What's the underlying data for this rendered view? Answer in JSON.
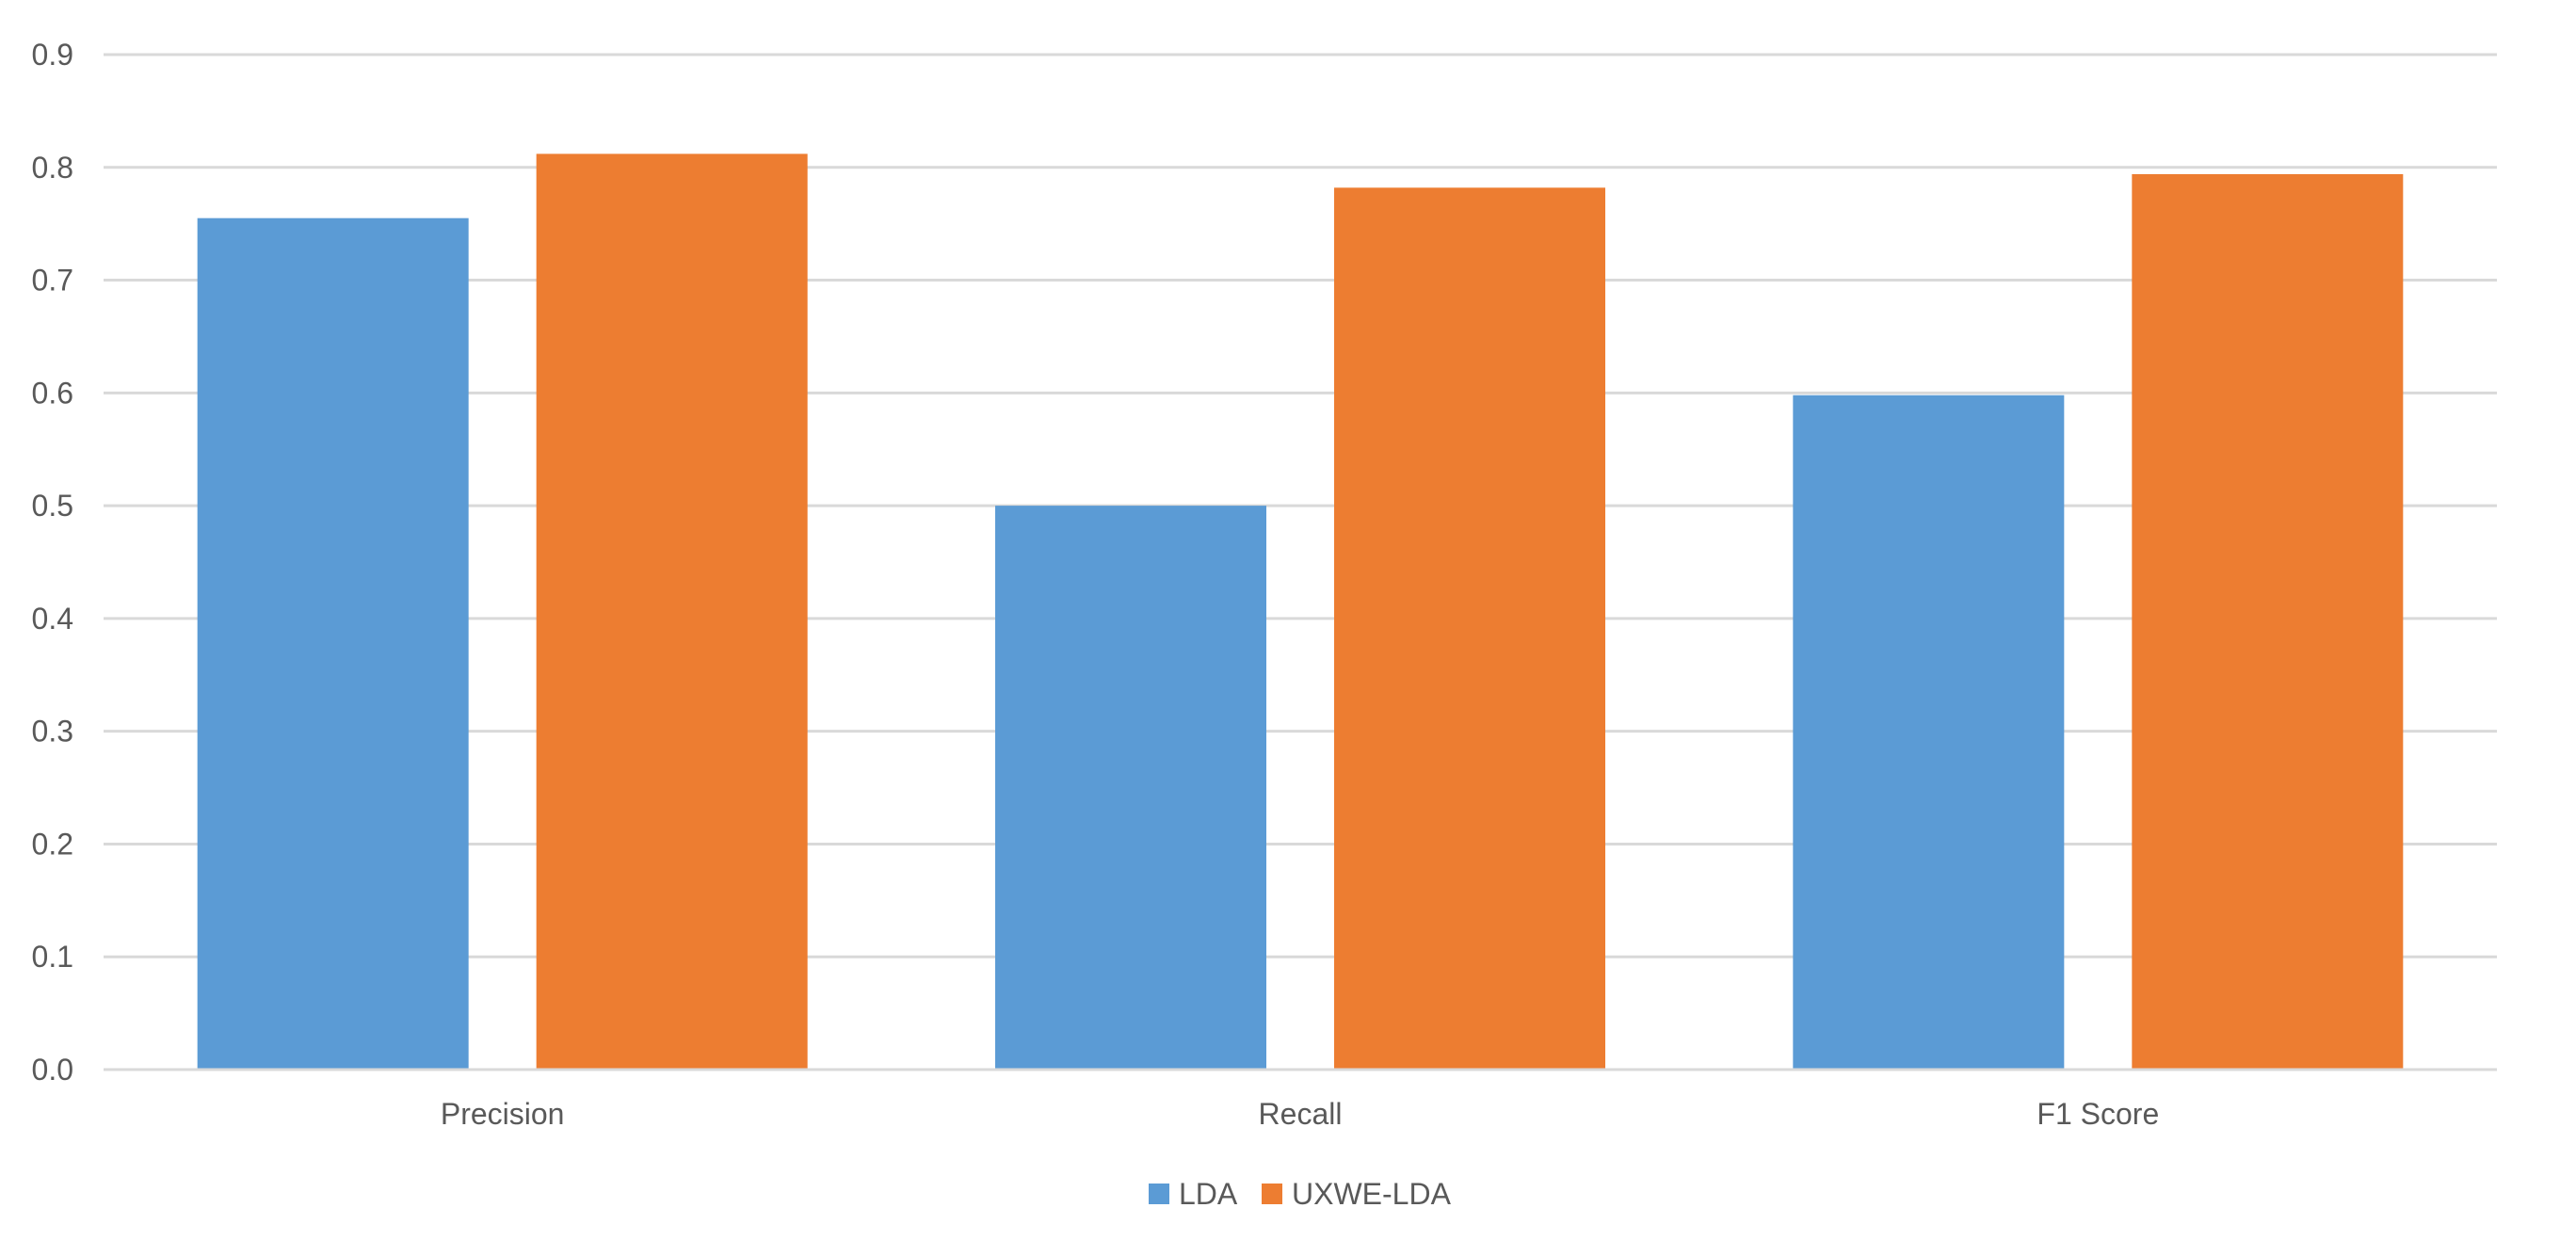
{
  "chart_data": {
    "type": "bar",
    "title": "",
    "xlabel": "",
    "ylabel": "",
    "categories": [
      "Precision",
      "Recall",
      "F1 Score"
    ],
    "series": [
      {
        "name": "LDA",
        "color": "#5b9bd5",
        "values": [
          0.755,
          0.5,
          0.598
        ]
      },
      {
        "name": "UXWE-LDA",
        "color": "#ed7d31",
        "values": [
          0.812,
          0.782,
          0.794
        ]
      }
    ],
    "ylim": [
      0,
      0.9
    ],
    "yticks": [
      "0.0",
      "0.1",
      "0.2",
      "0.3",
      "0.4",
      "0.5",
      "0.6",
      "0.7",
      "0.8",
      "0.9"
    ],
    "grid": true,
    "legend": "bottom-center"
  }
}
